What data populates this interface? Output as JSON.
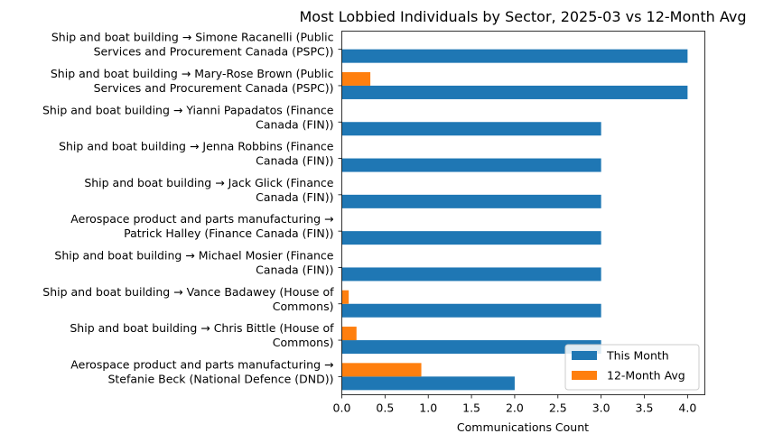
{
  "chart_data": {
    "type": "bar",
    "orientation": "horizontal",
    "title": "Most Lobbied Individuals by Sector, 2025-03 vs 12-Month Avg",
    "xlabel": "Communications Count",
    "ylabel": "",
    "xlim": [
      0,
      4.2
    ],
    "xticks": [
      "0.0",
      "0.5",
      "1.0",
      "1.5",
      "2.0",
      "2.5",
      "3.0",
      "3.5",
      "4.0"
    ],
    "grid": false,
    "legend_position": "bottom-right",
    "categories": [
      [
        "Ship and boat building → Simone Racanelli (Public",
        "Services and Procurement Canada (PSPC))"
      ],
      [
        "Ship and boat building → Mary-Rose Brown (Public",
        "Services and Procurement Canada (PSPC))"
      ],
      [
        "Ship and boat building → Yianni Papadatos (Finance",
        "Canada (FIN))"
      ],
      [
        "Ship and boat building → Jenna Robbins (Finance",
        "Canada (FIN))"
      ],
      [
        "Ship and boat building → Jack Glick (Finance",
        "Canada (FIN))"
      ],
      [
        "Aerospace product and parts manufacturing →",
        "Patrick Halley (Finance Canada (FIN))"
      ],
      [
        "Ship and boat building → Michael Mosier (Finance",
        "Canada (FIN))"
      ],
      [
        "Ship and boat building → Vance Badawey (House of",
        "Commons)"
      ],
      [
        "Ship and boat building → Chris Bittle (House of",
        "Commons)"
      ],
      [
        "Aerospace product and parts manufacturing →",
        "Stefanie Beck (National Defence (DND))"
      ]
    ],
    "series": [
      {
        "name": "This Month",
        "color": "#1f77b4",
        "values": [
          4,
          4,
          3,
          3,
          3,
          3,
          3,
          3,
          3,
          2
        ]
      },
      {
        "name": "12-Month Avg",
        "color": "#ff7f0e",
        "values": [
          0,
          0.33,
          0,
          0,
          0,
          0,
          0,
          0.08,
          0.17,
          0.92
        ]
      }
    ]
  }
}
